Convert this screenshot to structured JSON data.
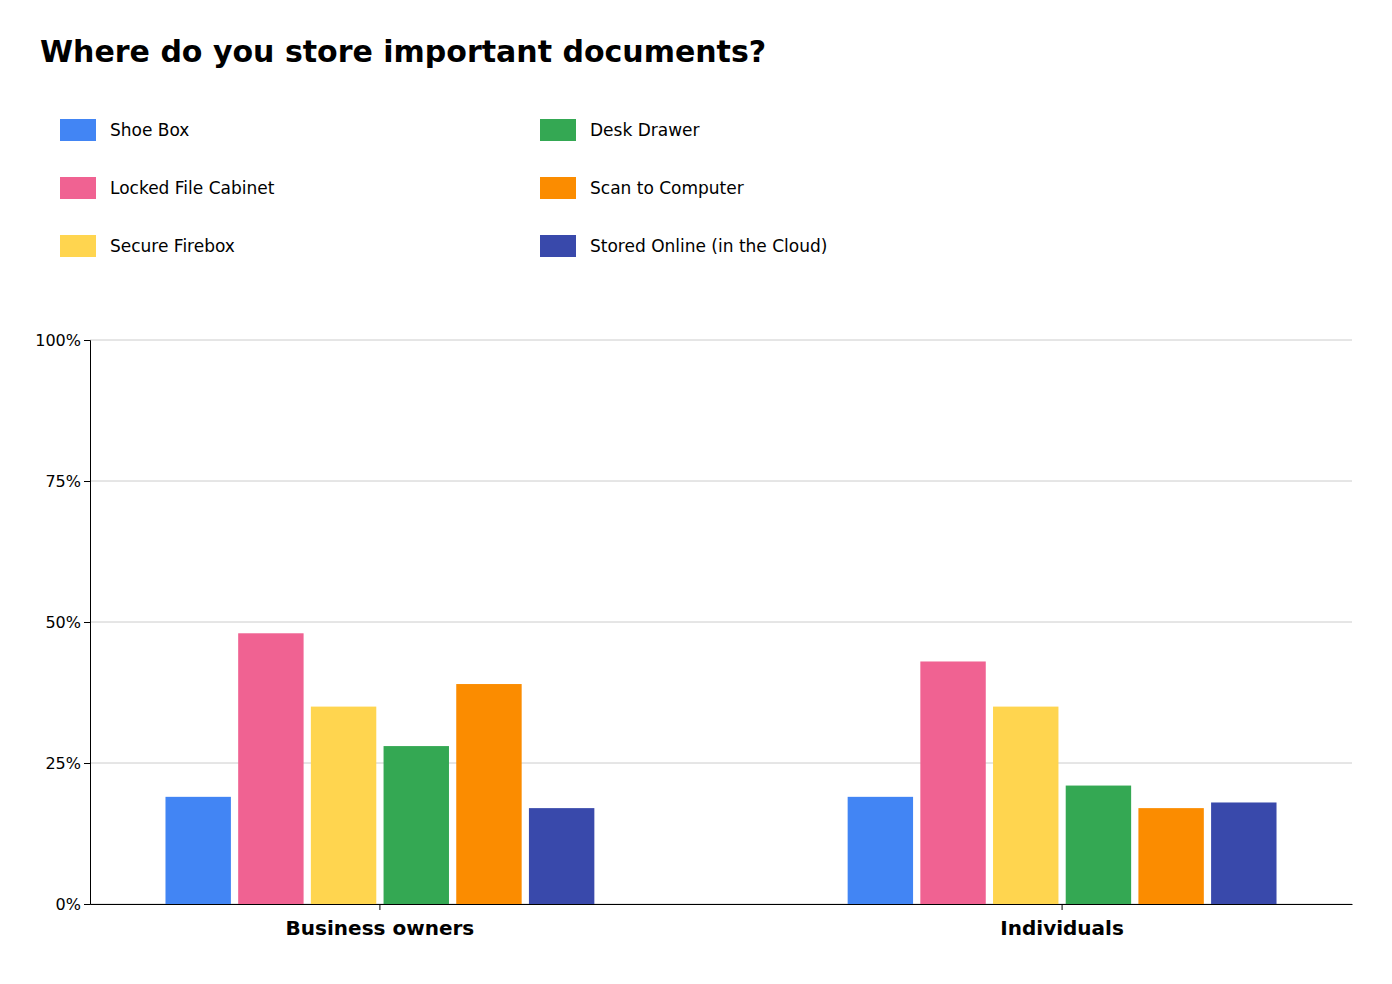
{
  "chart_data": {
    "type": "bar",
    "title": "Where do you store important documents?",
    "categories": [
      "Business owners",
      "Individuals"
    ],
    "series": [
      {
        "name": "Shoe Box",
        "color": "#4285F4",
        "values": [
          19,
          19
        ]
      },
      {
        "name": "Locked File Cabinet",
        "color": "#F06292",
        "values": [
          48,
          43
        ]
      },
      {
        "name": "Secure Firebox",
        "color": "#FFD54F",
        "values": [
          35,
          35
        ]
      },
      {
        "name": "Desk Drawer",
        "color": "#34A853",
        "values": [
          28,
          21
        ]
      },
      {
        "name": "Scan to Computer",
        "color": "#FB8C00",
        "values": [
          39,
          17
        ]
      },
      {
        "name": "Stored Online (in the Cloud)",
        "color": "#3949AB",
        "values": [
          17,
          18
        ]
      }
    ],
    "ylim": [
      0,
      100
    ],
    "yticks": [
      {
        "value": 0,
        "label": "0%"
      },
      {
        "value": 25,
        "label": "25%"
      },
      {
        "value": 50,
        "label": "50%"
      },
      {
        "value": 75,
        "label": "75%"
      },
      {
        "value": 100,
        "label": "100%"
      }
    ],
    "grid": true,
    "legend": "top"
  }
}
